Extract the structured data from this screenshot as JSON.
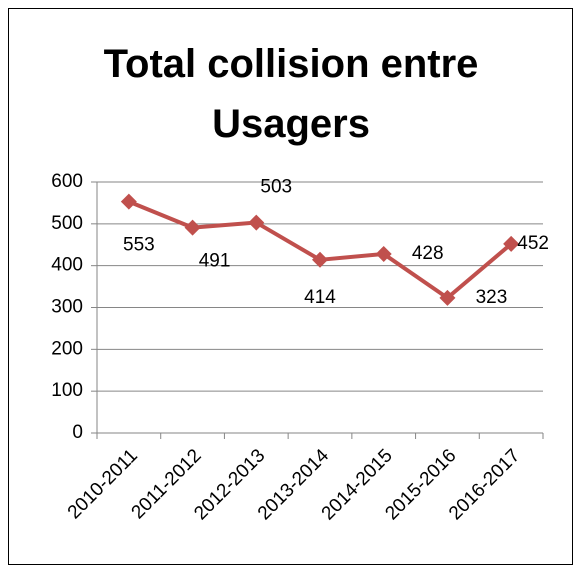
{
  "chart_data": {
    "type": "line",
    "title": "Total collision entre Usagers",
    "categories": [
      "2010-2011",
      "2011-2012",
      "2012-2013",
      "2013-2014",
      "2014-2015",
      "2015-2016",
      "2016-2017"
    ],
    "series": [
      {
        "name": "Total",
        "color": "#c0504d",
        "values": [
          553,
          491,
          503,
          414,
          428,
          323,
          452
        ]
      }
    ],
    "ylim": [
      0,
      600
    ],
    "yticks": [
      0,
      100,
      200,
      300,
      400,
      500,
      600
    ],
    "grid": true
  }
}
